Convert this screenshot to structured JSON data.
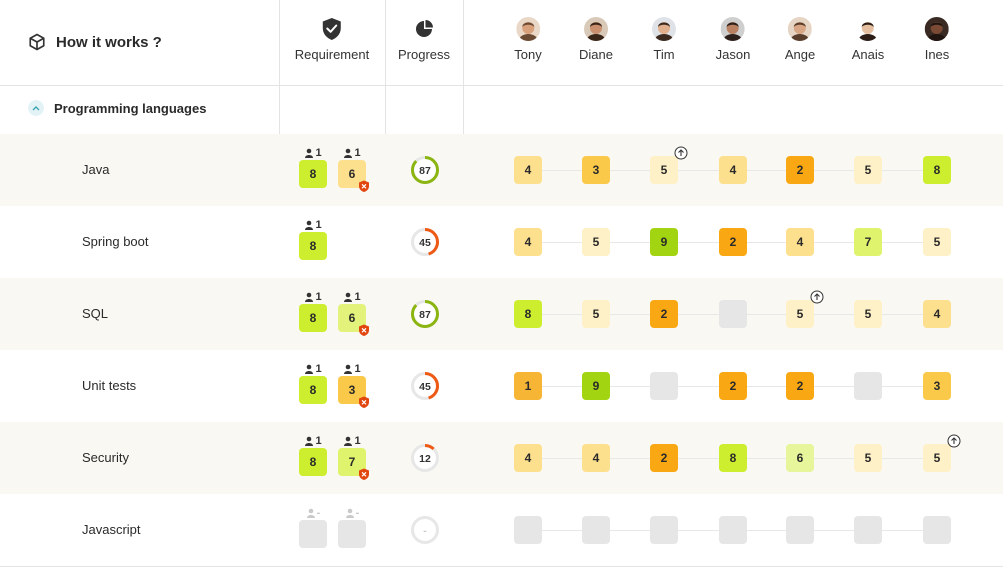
{
  "header": {
    "title": "How it works ?",
    "requirement_label": "Requirement",
    "progress_label": "Progress"
  },
  "people": [
    {
      "name": "Tony",
      "skin": "#d9a07c",
      "hair": "#6b4a33",
      "bg": "#e9d8c8"
    },
    {
      "name": "Diane",
      "skin": "#c98f6e",
      "hair": "#3a2519",
      "bg": "#d8c9b8"
    },
    {
      "name": "Tim",
      "skin": "#e0b08e",
      "hair": "#3b2a1f",
      "bg": "#dfe3e8"
    },
    {
      "name": "Jason",
      "skin": "#b98062",
      "hair": "#2e211b",
      "bg": "#cfcfcf"
    },
    {
      "name": "Ange",
      "skin": "#d8a684",
      "hair": "#5a3d2a",
      "bg": "#e6d5c4"
    },
    {
      "name": "Anais",
      "skin": "#e6bfa0",
      "hair": "#2b1d16",
      "bg": "#ffffff"
    },
    {
      "name": "Ines",
      "skin": "#7a4a35",
      "hair": "#1f1410",
      "bg": "#3a2a24"
    }
  ],
  "group": {
    "label": "Programming languages"
  },
  "colors": {
    "grey": "#e6e6e6",
    "1": "#f7b536",
    "2": "#f9a813",
    "3": "#fbc94a",
    "4": "#fde08e",
    "5": "#fff1c7",
    "6": "#e7f59b",
    "7": "#dff46c",
    "8": "#cdee2e",
    "9": "#a3d411"
  },
  "rows": [
    {
      "skill": "Java",
      "req": [
        {
          "count": "1",
          "value": "8",
          "color": "#cdee2e",
          "alert": false
        },
        {
          "count": "1",
          "value": "6",
          "color": "#fde08e",
          "alert": true
        }
      ],
      "progress": 87,
      "progress_label": "87",
      "ring": "#8bb510",
      "cells": [
        "4",
        "3",
        "5",
        "4",
        "2",
        "5",
        "8"
      ],
      "up": [
        false,
        false,
        true,
        false,
        false,
        false,
        false
      ]
    },
    {
      "skill": "Spring boot",
      "req": [
        {
          "count": "1",
          "value": "8",
          "color": "#cdee2e",
          "alert": false
        }
      ],
      "progress": 45,
      "progress_label": "45",
      "ring": "#ee5a14",
      "cells": [
        "4",
        "5",
        "9",
        "2",
        "4",
        "7",
        "5"
      ],
      "up": [
        false,
        false,
        false,
        false,
        false,
        false,
        false
      ]
    },
    {
      "skill": "SQL",
      "req": [
        {
          "count": "1",
          "value": "8",
          "color": "#cdee2e",
          "alert": false
        },
        {
          "count": "1",
          "value": "6",
          "color": "#e2f27a",
          "alert": true
        }
      ],
      "progress": 87,
      "progress_label": "87",
      "ring": "#8bb510",
      "cells": [
        "8",
        "5",
        "2",
        "",
        "5",
        "5",
        "4"
      ],
      "up": [
        false,
        false,
        false,
        false,
        true,
        false,
        false
      ]
    },
    {
      "skill": "Unit tests",
      "req": [
        {
          "count": "1",
          "value": "8",
          "color": "#cdee2e",
          "alert": false
        },
        {
          "count": "1",
          "value": "3",
          "color": "#fbc94a",
          "alert": true
        }
      ],
      "progress": 45,
      "progress_label": "45",
      "ring": "#ee5a14",
      "cells": [
        "1",
        "9",
        "",
        "2",
        "2",
        "",
        "3"
      ],
      "up": [
        false,
        false,
        false,
        false,
        false,
        false,
        false
      ]
    },
    {
      "skill": "Security",
      "req": [
        {
          "count": "1",
          "value": "8",
          "color": "#cdee2e",
          "alert": false
        },
        {
          "count": "1",
          "value": "7",
          "color": "#dff46c",
          "alert": true
        }
      ],
      "progress": 12,
      "progress_label": "12",
      "ring": "#ee5a14",
      "cells": [
        "4",
        "4",
        "2",
        "8",
        "6",
        "5",
        "5"
      ],
      "up": [
        false,
        false,
        false,
        false,
        false,
        false,
        true
      ]
    },
    {
      "skill": "Javascript",
      "req": [
        {
          "count": "-",
          "value": "",
          "color": "#e6e6e6",
          "alert": false
        },
        {
          "count": "-",
          "value": "",
          "color": "#e6e6e6",
          "alert": false
        }
      ],
      "progress": 0,
      "progress_label": "-",
      "ring": "#cfcfcf",
      "cells": [
        "",
        "",
        "",
        "",
        "",
        "",
        ""
      ],
      "up": [
        false,
        false,
        false,
        false,
        false,
        false,
        false
      ]
    }
  ]
}
